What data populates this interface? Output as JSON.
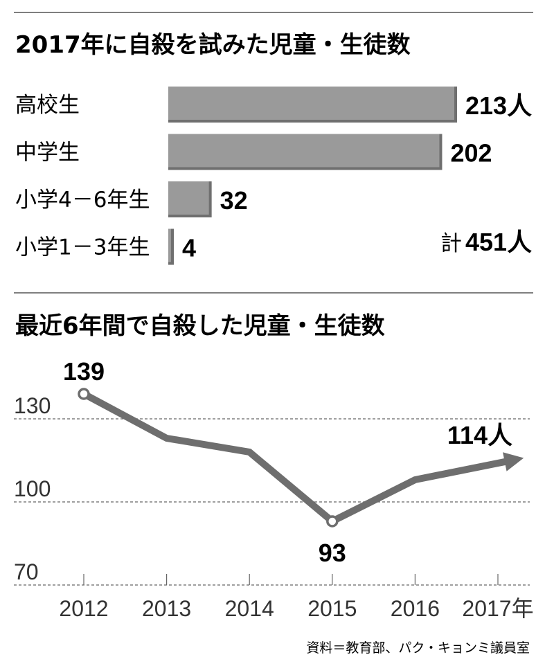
{
  "chart_data": [
    {
      "type": "bar",
      "orientation": "horizontal",
      "title": "2017年に自殺を試みた児童・生徒数",
      "categories": [
        "高校生",
        "中学生",
        "小学4－6年生",
        "小学1－3年生"
      ],
      "values": [
        213,
        202,
        32,
        4
      ],
      "value_labels": [
        "213人",
        "202",
        "32",
        "4"
      ],
      "total_label": "計",
      "total_value": "451人",
      "bar_color": "#9a9a9a"
    },
    {
      "type": "line",
      "title": "最近6年間で自殺した児童・生徒数",
      "x": [
        "2012",
        "2013",
        "2014",
        "2015",
        "2016",
        "2017年"
      ],
      "values": [
        139,
        123,
        118,
        93,
        108,
        114
      ],
      "ylim": [
        70,
        140
      ],
      "yticks": [
        "70",
        "100",
        "130"
      ],
      "ytick_values": [
        70,
        100,
        130
      ],
      "grid": true,
      "annotations": [
        {
          "index": 0,
          "label": "139"
        },
        {
          "index": 3,
          "label": "93"
        },
        {
          "index": 5,
          "label": "114人"
        }
      ],
      "line_color": "#6e6e6e"
    }
  ],
  "source": "資料＝教育部、パク・キョンミ議員室"
}
